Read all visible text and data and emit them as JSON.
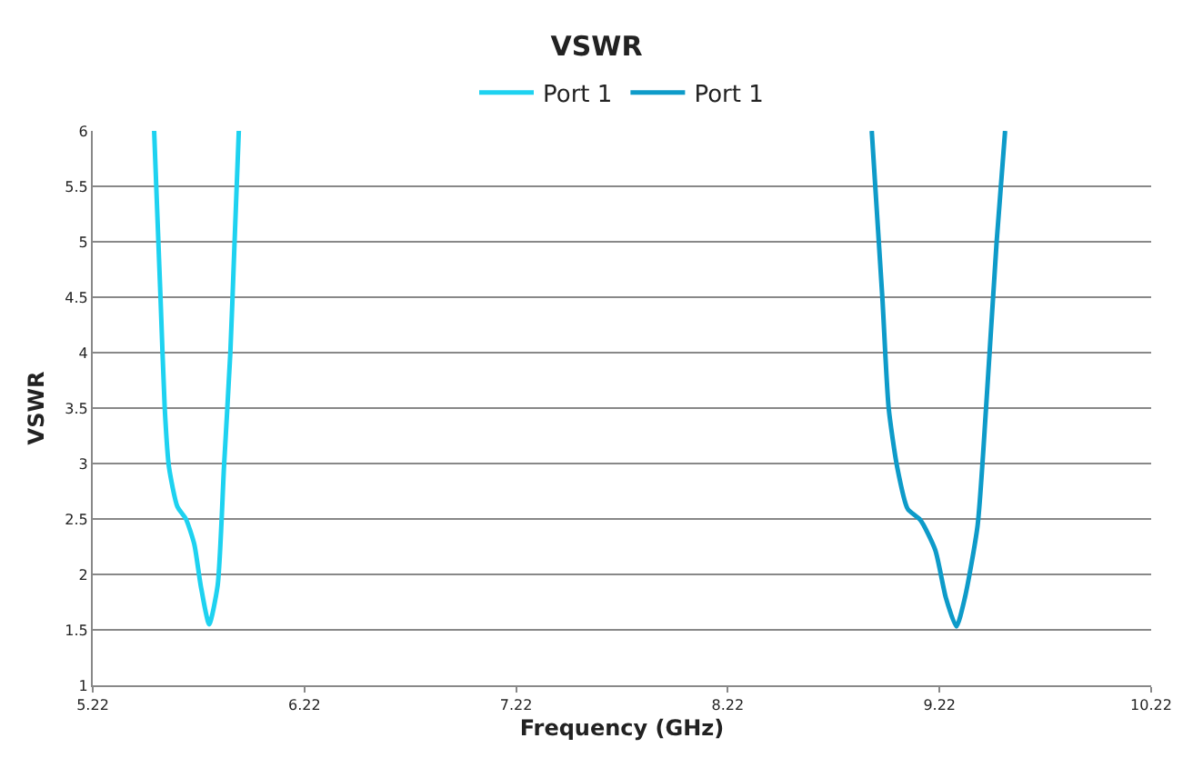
{
  "chart_data": {
    "type": "line",
    "title": "VSWR",
    "xlabel": "Frequency (GHz)",
    "ylabel": "VSWR",
    "xlim": [
      5.22,
      10.22
    ],
    "xticks": [
      5.22,
      6.22,
      7.22,
      8.22,
      9.22,
      10.22
    ],
    "ylim": [
      1,
      6
    ],
    "yticks": [
      1,
      1.5,
      2,
      2.5,
      3,
      3.5,
      4,
      4.5,
      5,
      5.5,
      6
    ],
    "grid": "y",
    "legend": "top",
    "marker": "none",
    "line_style": "solid",
    "series": [
      {
        "name": "Port 1",
        "color": "#1ed2f0",
        "x": [
          5.51,
          5.54,
          5.56,
          5.58,
          5.62,
          5.66,
          5.7,
          5.73,
          5.77,
          5.81,
          5.84,
          5.87,
          5.89,
          5.91
        ],
        "values": [
          6,
          4.5,
          3.5,
          2.97,
          2.61,
          2.5,
          2.27,
          1.9,
          1.55,
          1.9,
          2.97,
          4,
          5,
          6
        ]
      },
      {
        "name": "Port 1",
        "color": "#0e9bc9",
        "x": [
          8.9,
          8.95,
          8.98,
          9.02,
          9.07,
          9.13,
          9.2,
          9.25,
          9.3,
          9.34,
          9.4,
          9.44,
          9.49,
          9.53
        ],
        "values": [
          6,
          4.5,
          3.5,
          2.97,
          2.59,
          2.49,
          2.22,
          1.79,
          1.53,
          1.79,
          2.44,
          3.5,
          5,
          6
        ]
      }
    ]
  }
}
